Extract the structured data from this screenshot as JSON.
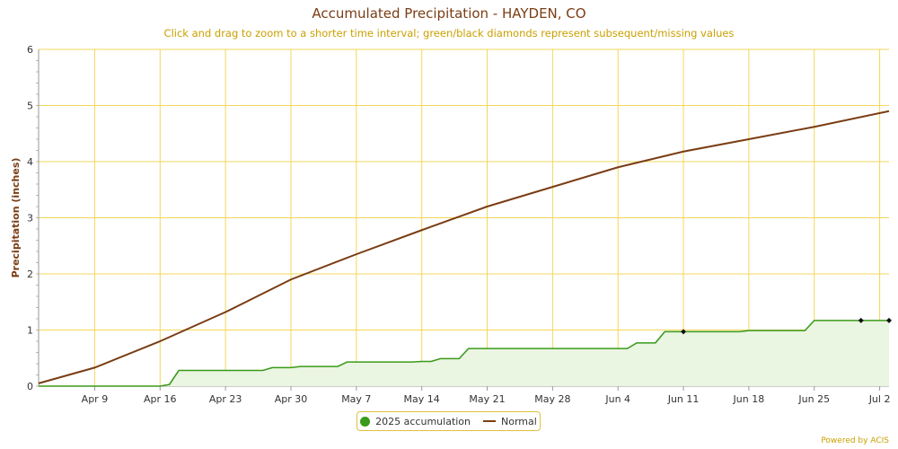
{
  "chart_data": {
    "type": "line",
    "title": "Accumulated Precipitation - HAYDEN, CO",
    "subtitle": "Click and drag to zoom to a shorter time interval; green/black diamonds represent subsequent/missing values",
    "ylabel": "Precipitation (inches)",
    "xlabel": "",
    "ylim": [
      0,
      6
    ],
    "xlim": [
      "2025-04-03",
      "2025-07-03"
    ],
    "yticks": [
      "0",
      "1",
      "2",
      "3",
      "4",
      "5",
      "6"
    ],
    "xticks": [
      {
        "label": "Apr 9",
        "date": "2025-04-09"
      },
      {
        "label": "Apr 16",
        "date": "2025-04-16"
      },
      {
        "label": "Apr 23",
        "date": "2025-04-23"
      },
      {
        "label": "Apr 30",
        "date": "2025-04-30"
      },
      {
        "label": "May 7",
        "date": "2025-05-07"
      },
      {
        "label": "May 14",
        "date": "2025-05-14"
      },
      {
        "label": "May 21",
        "date": "2025-05-21"
      },
      {
        "label": "May 28",
        "date": "2025-05-28"
      },
      {
        "label": "Jun 4",
        "date": "2025-06-04"
      },
      {
        "label": "Jun 11",
        "date": "2025-06-11"
      },
      {
        "label": "Jun 18",
        "date": "2025-06-18"
      },
      {
        "label": "Jun 25",
        "date": "2025-06-25"
      },
      {
        "label": "Jul 2",
        "date": "2025-07-02"
      }
    ],
    "grid": true,
    "legend_position": "bottom-center",
    "series": [
      {
        "name": "2025 accumulation",
        "color": "#3a9a1a",
        "fill": "#eaf5e2",
        "points": [
          [
            "2025-04-03",
            0
          ],
          [
            "2025-04-16",
            0
          ],
          [
            "2025-04-17",
            0.03
          ],
          [
            "2025-04-18",
            0.28
          ],
          [
            "2025-04-27",
            0.28
          ],
          [
            "2025-04-28",
            0.33
          ],
          [
            "2025-04-30",
            0.33
          ],
          [
            "2025-05-01",
            0.35
          ],
          [
            "2025-05-05",
            0.35
          ],
          [
            "2025-05-06",
            0.43
          ],
          [
            "2025-05-13",
            0.43
          ],
          [
            "2025-05-14",
            0.44
          ],
          [
            "2025-05-15",
            0.44
          ],
          [
            "2025-05-16",
            0.49
          ],
          [
            "2025-05-18",
            0.49
          ],
          [
            "2025-05-19",
            0.67
          ],
          [
            "2025-06-05",
            0.67
          ],
          [
            "2025-06-06",
            0.77
          ],
          [
            "2025-06-08",
            0.77
          ],
          [
            "2025-06-09",
            0.97
          ],
          [
            "2025-06-17",
            0.97
          ],
          [
            "2025-06-18",
            0.99
          ],
          [
            "2025-06-24",
            0.99
          ],
          [
            "2025-06-25",
            1.17
          ],
          [
            "2025-07-03",
            1.17
          ]
        ],
        "markers": [
          [
            "2025-06-11",
            0.97
          ],
          [
            "2025-06-30",
            1.17
          ],
          [
            "2025-07-03",
            1.17
          ]
        ]
      },
      {
        "name": "Normal",
        "color": "#7a3d14",
        "points": [
          [
            "2025-04-03",
            0.05
          ],
          [
            "2025-04-09",
            0.33
          ],
          [
            "2025-04-16",
            0.8
          ],
          [
            "2025-04-23",
            1.32
          ],
          [
            "2025-04-30",
            1.9
          ],
          [
            "2025-05-07",
            2.35
          ],
          [
            "2025-05-14",
            2.78
          ],
          [
            "2025-05-21",
            3.2
          ],
          [
            "2025-05-28",
            3.55
          ],
          [
            "2025-06-04",
            3.9
          ],
          [
            "2025-06-11",
            4.18
          ],
          [
            "2025-06-18",
            4.4
          ],
          [
            "2025-06-25",
            4.62
          ],
          [
            "2025-07-03",
            4.9
          ]
        ]
      }
    ]
  },
  "footer": {
    "powered_by": "Powered by ACIS"
  }
}
